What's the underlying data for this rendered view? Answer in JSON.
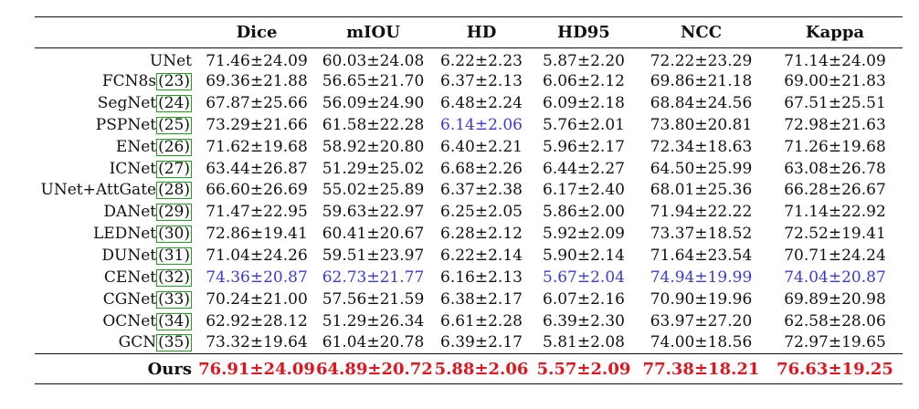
{
  "headers": [
    "",
    "Dice",
    "mIOU",
    "HD",
    "HD95",
    "NCC",
    "Kappa"
  ],
  "rows": [
    {
      "name": "UNet",
      "ref": "",
      "values": [
        "71.46±24.09",
        "60.03±24.08",
        "6.22±2.23",
        "5.87±2.20",
        "72.22±23.29",
        "71.14±24.09"
      ],
      "highlight": [
        "",
        "",
        "",
        "",
        "",
        ""
      ]
    },
    {
      "name": "FCN8s",
      "ref": "(23)",
      "values": [
        "69.36±21.88",
        "56.65±21.70",
        "6.37±2.13",
        "6.06±2.12",
        "69.86±21.18",
        "69.00±21.83"
      ],
      "highlight": [
        "",
        "",
        "",
        "",
        "",
        ""
      ]
    },
    {
      "name": "SegNet",
      "ref": "(24)",
      "values": [
        "67.87±25.66",
        "56.09±24.90",
        "6.48±2.24",
        "6.09±2.18",
        "68.84±24.56",
        "67.51±25.51"
      ],
      "highlight": [
        "",
        "",
        "",
        "",
        "",
        ""
      ]
    },
    {
      "name": "PSPNet",
      "ref": "(25)",
      "values": [
        "73.29±21.66",
        "61.58±22.28",
        "6.14±2.06",
        "5.76±2.01",
        "73.80±20.81",
        "72.98±21.63"
      ],
      "highlight": [
        "",
        "",
        "blue",
        "",
        "",
        ""
      ]
    },
    {
      "name": "ENet",
      "ref": "(26)",
      "values": [
        "71.62±19.68",
        "58.92±20.80",
        "6.40±2.21",
        "5.96±2.17",
        "72.34±18.63",
        "71.26±19.68"
      ],
      "highlight": [
        "",
        "",
        "",
        "",
        "",
        ""
      ]
    },
    {
      "name": "ICNet",
      "ref": "(27)",
      "values": [
        "63.44±26.87",
        "51.29±25.02",
        "6.68±2.26",
        "6.44±2.27",
        "64.50±25.99",
        "63.08±26.78"
      ],
      "highlight": [
        "",
        "",
        "",
        "",
        "",
        ""
      ]
    },
    {
      "name": "UNet+AttGate",
      "ref": "(28)",
      "values": [
        "66.60±26.69",
        "55.02±25.89",
        "6.37±2.38",
        "6.17±2.40",
        "68.01±25.36",
        "66.28±26.67"
      ],
      "highlight": [
        "",
        "",
        "",
        "",
        "",
        ""
      ]
    },
    {
      "name": "DANet",
      "ref": "(29)",
      "values": [
        "71.47±22.95",
        "59.63±22.97",
        "6.25±2.05",
        "5.86±2.00",
        "71.94±22.22",
        "71.14±22.92"
      ],
      "highlight": [
        "",
        "",
        "",
        "",
        "",
        ""
      ]
    },
    {
      "name": "LEDNet",
      "ref": "(30)",
      "values": [
        "72.86±19.41",
        "60.41±20.67",
        "6.28±2.12",
        "5.92±2.09",
        "73.37±18.52",
        "72.52±19.41"
      ],
      "highlight": [
        "",
        "",
        "",
        "",
        "",
        ""
      ]
    },
    {
      "name": "DUNet",
      "ref": "(31)",
      "values": [
        "71.04±24.26",
        "59.51±23.97",
        "6.22±2.14",
        "5.90±2.14",
        "71.64±23.54",
        "70.71±24.24"
      ],
      "highlight": [
        "",
        "",
        "",
        "",
        "",
        ""
      ]
    },
    {
      "name": "CENet",
      "ref": "(32)",
      "values": [
        "74.36±20.87",
        "62.73±21.77",
        "6.16±2.13",
        "5.67±2.04",
        "74.94±19.99",
        "74.04±20.87"
      ],
      "highlight": [
        "blue",
        "blue",
        "",
        "blue",
        "blue",
        "blue"
      ]
    },
    {
      "name": "CGNet",
      "ref": "(33)",
      "values": [
        "70.24±21.00",
        "57.56±21.59",
        "6.38±2.17",
        "6.07±2.16",
        "70.90±19.96",
        "69.89±20.98"
      ],
      "highlight": [
        "",
        "",
        "",
        "",
        "",
        ""
      ]
    },
    {
      "name": "OCNet",
      "ref": "(34)",
      "values": [
        "62.92±28.12",
        "51.29±26.34",
        "6.61±2.28",
        "6.39±2.30",
        "63.97±27.20",
        "62.58±28.06"
      ],
      "highlight": [
        "",
        "",
        "",
        "",
        "",
        ""
      ]
    },
    {
      "name": "GCN",
      "ref": "(35)",
      "values": [
        "73.32±19.64",
        "61.04±20.78",
        "6.39±2.17",
        "5.81±2.08",
        "74.00±18.56",
        "72.97±19.65"
      ],
      "highlight": [
        "",
        "",
        "",
        "",
        "",
        ""
      ]
    }
  ],
  "ours": {
    "name": "Ours",
    "values": [
      "76.91±24.09",
      "64.89±20.72",
      "5.88±2.06",
      "5.57±2.09",
      "77.38±18.21",
      "76.63±19.25"
    ]
  },
  "colors": {
    "best": "#e0151e",
    "second": "#3a3ad6",
    "cite_box": "#1aa51a"
  }
}
